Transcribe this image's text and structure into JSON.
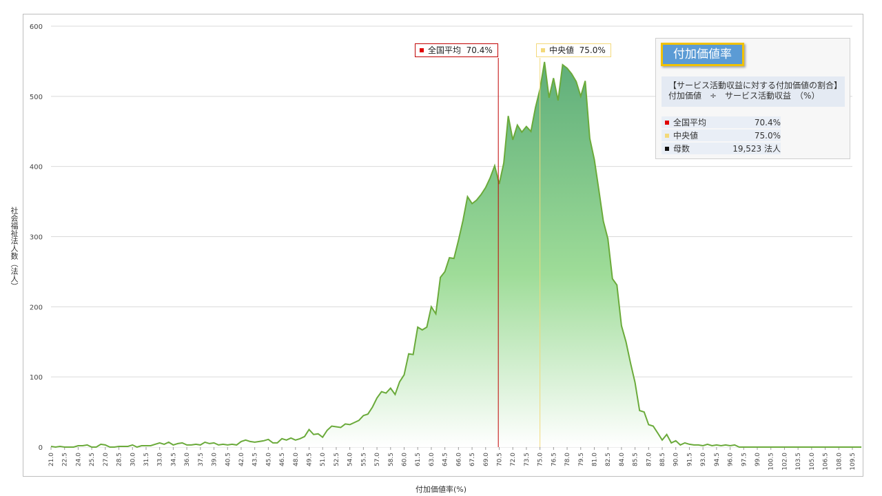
{
  "chart_data": {
    "type": "area",
    "xlabel": "付加価値率(%)",
    "ylabel": "社会福祉法人数（法人）",
    "ylim": [
      0,
      600
    ],
    "yticks": [
      0,
      100,
      200,
      300,
      400,
      500,
      600
    ],
    "xlim": [
      21.0,
      109.5
    ],
    "xtick_labels": [
      "21.0",
      "22.5",
      "24.0",
      "25.5",
      "27.0",
      "28.5",
      "30.0",
      "31.5",
      "33.0",
      "34.5",
      "36.0",
      "37.5",
      "39.0",
      "40.5",
      "42.0",
      "43.5",
      "45.0",
      "46.5",
      "48.0",
      "49.5",
      "51.0",
      "52.5",
      "54.0",
      "55.5",
      "57.0",
      "58.5",
      "60.0",
      "61.5",
      "63.0",
      "64.5",
      "66.0",
      "67.5",
      "69.0",
      "70.5",
      "72.0",
      "73.5",
      "75.0",
      "76.5",
      "78.0",
      "79.5",
      "81.0",
      "82.5",
      "84.0",
      "85.5",
      "87.0",
      "88.5",
      "90.0",
      "91.5",
      "93.0",
      "94.5",
      "96.0",
      "97.5",
      "99.0",
      "100.5",
      "102.0",
      "103.5",
      "105.0",
      "106.5",
      "108.0",
      "109.5"
    ],
    "grid": true,
    "fill_color_top": "#5fae7a",
    "fill_color_bottom": "#ffffff",
    "line_color": "#6aaa3a",
    "series": [
      {
        "x_start": 21.0,
        "x_step": 0.5,
        "values": [
          1,
          0,
          1,
          0,
          0,
          0,
          2,
          2,
          3,
          0,
          0,
          4,
          3,
          0,
          0,
          1,
          1,
          1,
          3,
          0,
          2,
          2,
          2,
          4,
          6,
          4,
          7,
          3,
          5,
          6,
          3,
          3,
          4,
          3,
          7,
          5,
          6,
          3,
          4,
          3,
          4,
          3,
          8,
          10,
          8,
          7,
          8,
          9,
          11,
          6,
          6,
          12,
          10,
          13,
          10,
          12,
          15,
          25,
          18,
          19,
          14,
          24,
          30,
          29,
          28,
          33,
          32,
          35,
          38,
          45,
          47,
          57,
          70,
          79,
          77,
          84,
          75,
          93,
          103,
          133,
          132,
          171,
          167,
          171,
          200,
          190,
          242,
          250,
          270,
          269,
          295,
          323,
          357,
          347,
          352,
          360,
          370,
          384,
          401,
          375,
          405,
          472,
          438,
          459,
          449,
          457,
          450,
          484,
          510,
          549,
          498,
          526,
          494,
          545,
          540,
          532,
          521,
          500,
          522,
          440,
          410,
          367,
          322,
          297,
          240,
          231,
          173,
          150,
          120,
          92,
          52,
          50,
          32,
          30,
          20,
          10,
          18,
          6,
          9,
          3,
          6,
          4,
          3,
          3,
          2,
          4,
          2,
          3,
          2,
          3,
          2,
          3,
          0,
          0,
          0,
          0,
          0,
          0,
          0,
          0,
          0,
          0,
          0,
          0,
          0,
          0,
          0,
          0,
          0,
          0,
          0,
          0,
          0,
          0,
          0,
          0,
          0,
          0,
          0,
          0
        ]
      }
    ],
    "markers": [
      {
        "label": "全国平均",
        "value_text": "70.4%",
        "x": 70.4,
        "color": "#c00000"
      },
      {
        "label": "中央値",
        "value_text": "75.0%",
        "x": 75.0,
        "color": "#f3d97a"
      }
    ]
  },
  "info": {
    "title": "付加価値率",
    "desc_line1": "【サービス活動収益に対する付加価値の割合】",
    "desc_line2": "付加価値　÷　サービス活動収益　（%）",
    "rows": [
      {
        "label": "全国平均",
        "value": "70.4%",
        "color": "#e00000"
      },
      {
        "label": "中央値",
        "value": "75.0%",
        "color": "#f3d97a"
      },
      {
        "label": "母数",
        "value": "19,523  法人",
        "color": "#111111"
      }
    ]
  }
}
